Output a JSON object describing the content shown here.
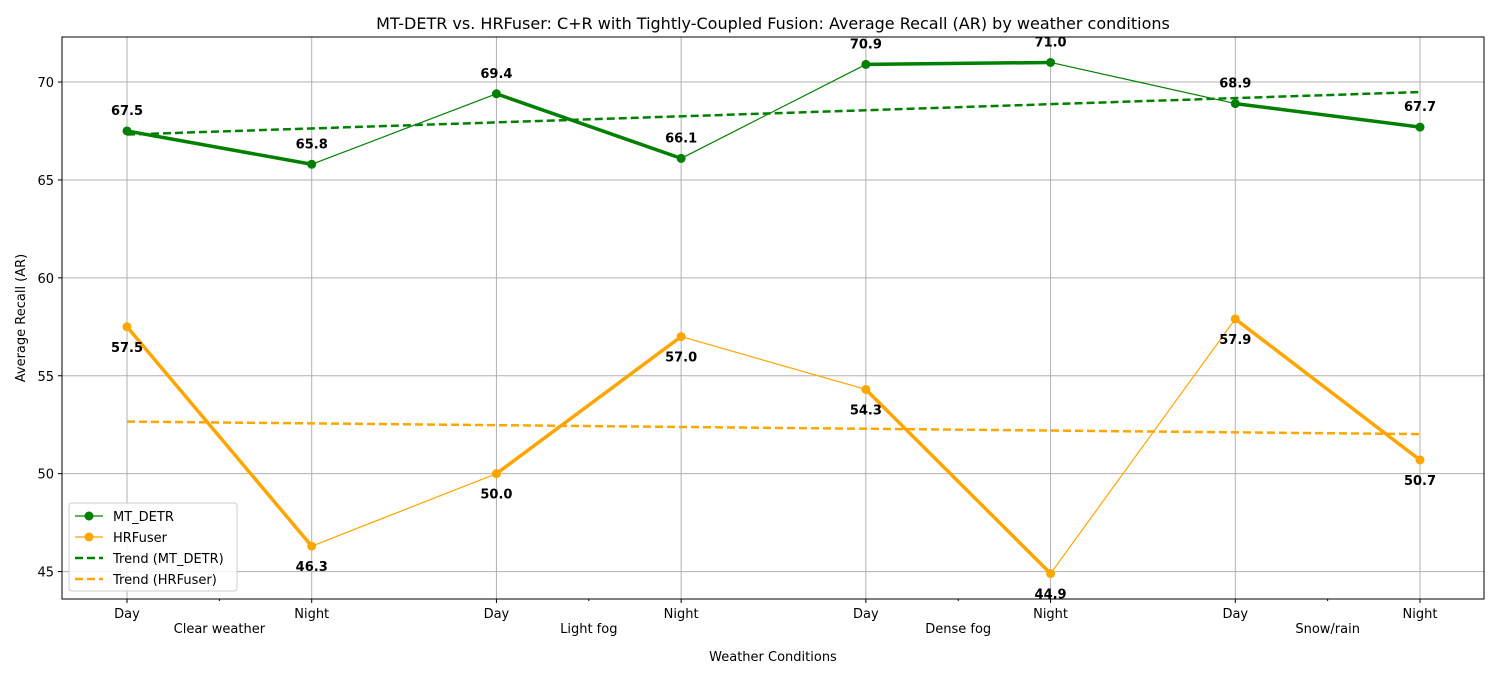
{
  "chart_data": {
    "type": "line",
    "title": "MT-DETR vs. HRFuser: C+R with Tightly-Coupled Fusion: Average Recall (AR) by weather conditions",
    "xlabel": "Weather Conditions",
    "ylabel": "Average Recall (AR)",
    "categories": [
      "Day",
      "Night",
      "Day",
      "Night",
      "Day",
      "Night",
      "Day",
      "Night"
    ],
    "groups": [
      "Clear weather",
      "Light fog",
      "Dense fog",
      "Snow/rain"
    ],
    "ylim": [
      43.6,
      72.3
    ],
    "yticks": [
      45,
      50,
      55,
      60,
      65,
      70
    ],
    "grid": true,
    "legend_position": "lower-left",
    "series": [
      {
        "name": "MT_DETR",
        "color": "#008000",
        "values": [
          67.5,
          65.8,
          69.4,
          66.1,
          70.9,
          71.0,
          68.9,
          67.7
        ],
        "labels": [
          "67.5",
          "65.8",
          "69.4",
          "66.1",
          "70.9",
          "71.0",
          "68.9",
          "67.7"
        ],
        "label_side": "above"
      },
      {
        "name": "HRFuser",
        "color": "#FFA500",
        "values": [
          57.5,
          46.3,
          50.0,
          57.0,
          54.3,
          44.9,
          57.9,
          50.7
        ],
        "labels": [
          "57.5",
          "46.3",
          "50.0",
          "57.0",
          "54.3",
          "44.9",
          "57.9",
          "50.7"
        ],
        "label_side": "below"
      }
    ],
    "trends": [
      {
        "name": "Trend (MT_DETR)",
        "color": "#008000",
        "start": 67.32,
        "end": 69.49
      },
      {
        "name": "Trend (HRFuser)",
        "color": "#FFA500",
        "start": 52.66,
        "end": 52.02
      }
    ]
  }
}
